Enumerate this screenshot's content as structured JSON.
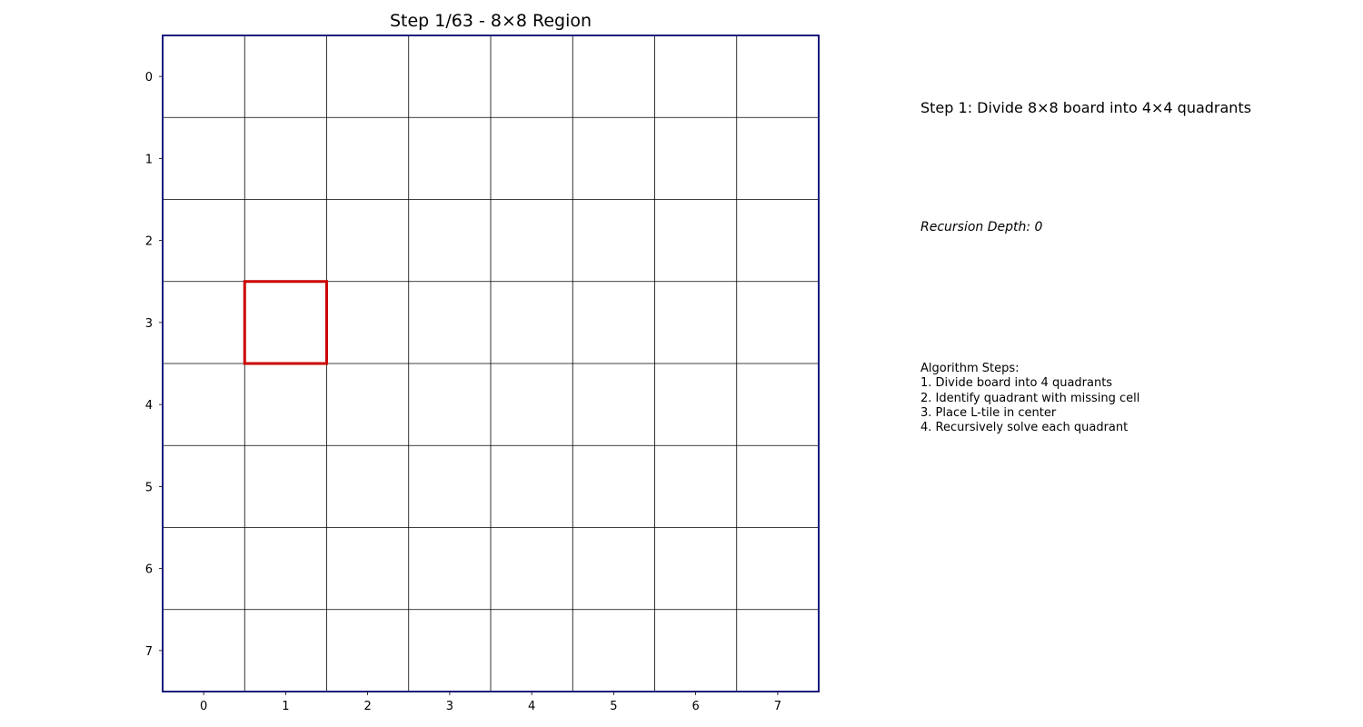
{
  "chart_data": {
    "type": "heatmap",
    "title": "Step 1/63 - 8×8 Region",
    "xlabel": "",
    "ylabel": "",
    "rows": 8,
    "cols": 8,
    "x_ticks": [
      "0",
      "1",
      "2",
      "3",
      "4",
      "5",
      "6",
      "7"
    ],
    "y_ticks": [
      "0",
      "1",
      "2",
      "3",
      "4",
      "5",
      "6",
      "7"
    ],
    "xlim": [
      -0.5,
      7.5
    ],
    "ylim": [
      7.5,
      -0.5
    ],
    "y_inverted": true,
    "grid": true,
    "region": {
      "row": 0,
      "col": 0,
      "size": 8
    },
    "highlighted_cell": {
      "row": 3,
      "col": 1
    },
    "colors": {
      "region_border": "#1a1a7e",
      "grid_line": "#000000",
      "highlight": "#cc0000",
      "cell_fill": "#ffffff"
    }
  },
  "info_panel": {
    "step_description": "Step 1: Divide 8×8 board into 4×4 quadrants",
    "recursion_depth": "Recursion Depth: 0",
    "algorithm_steps": [
      "Algorithm Steps:",
      "1. Divide board into 4 quadrants",
      "2. Identify quadrant with missing cell",
      "3. Place L-tile in center",
      "4. Recursively solve each quadrant"
    ]
  }
}
